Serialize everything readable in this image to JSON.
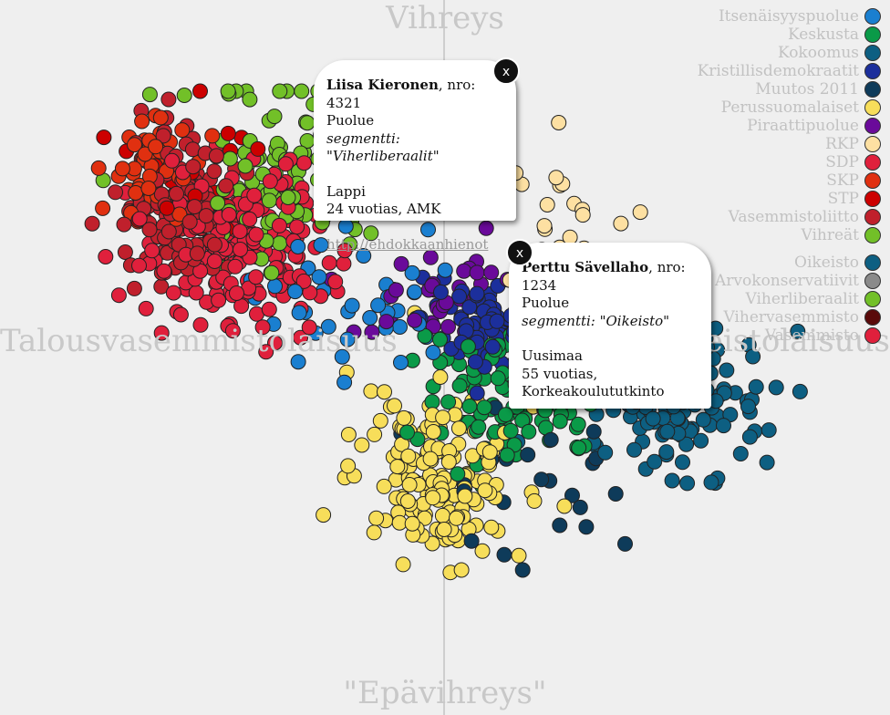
{
  "chart_data": {
    "type": "scatter",
    "xlabel_left": "Talousvasemmistolaisuus",
    "xlabel_right": "Talousoikeistolaisuus",
    "ylabel_top": "Vihreys",
    "ylabel_bottom": "\"Epävihreys\"",
    "series": [
      {
        "name": "Itsenäisyyspuolue",
        "color": "#1a7fd0",
        "count": 40,
        "cx": 400,
        "cy": 330,
        "sx": 110,
        "sy": 80
      },
      {
        "name": "Keskusta",
        "color": "#0a9a48",
        "count": 120,
        "cx": 560,
        "cy": 430,
        "sx": 90,
        "sy": 75
      },
      {
        "name": "Kokoomus",
        "color": "#0d5f82",
        "count": 150,
        "cx": 740,
        "cy": 440,
        "sx": 90,
        "sy": 70
      },
      {
        "name": "Kristillisdemokraatit",
        "color": "#1c2f9c",
        "count": 90,
        "cx": 540,
        "cy": 350,
        "sx": 70,
        "sy": 45
      },
      {
        "name": "Muutos 2011",
        "color": "#0e3b5a",
        "count": 25,
        "cx": 600,
        "cy": 520,
        "sx": 110,
        "sy": 90
      },
      {
        "name": "Perussuomalaiset",
        "color": "#f7de5a",
        "count": 170,
        "cx": 480,
        "cy": 520,
        "sx": 80,
        "sy": 80
      },
      {
        "name": "Piraattipuolue",
        "color": "#6a0a9a",
        "count": 40,
        "cx": 490,
        "cy": 320,
        "sx": 110,
        "sy": 70
      },
      {
        "name": "RKP",
        "color": "#fde0a2",
        "count": 25,
        "cx": 620,
        "cy": 260,
        "sx": 70,
        "sy": 80
      },
      {
        "name": "SDP",
        "color": "#e0203c",
        "count": 200,
        "cx": 260,
        "cy": 270,
        "sx": 90,
        "sy": 90
      },
      {
        "name": "SKP",
        "color": "#e03010",
        "count": 50,
        "cx": 170,
        "cy": 180,
        "sx": 50,
        "sy": 60
      },
      {
        "name": "STP",
        "color": "#cc0000",
        "count": 20,
        "cx": 200,
        "cy": 200,
        "sx": 70,
        "sy": 70
      },
      {
        "name": "Vasemmistoliitto",
        "color": "#c0202c",
        "count": 130,
        "cx": 200,
        "cy": 230,
        "sx": 60,
        "sy": 70
      },
      {
        "name": "Vihreät",
        "color": "#72c028",
        "count": 110,
        "cx": 320,
        "cy": 190,
        "sx": 100,
        "sy": 90
      }
    ],
    "legend_position": "top-right",
    "grid": false
  },
  "legend": {
    "parties": [
      {
        "label": "Itsenäisyyspuolue",
        "color": "#1a7fd0"
      },
      {
        "label": "Keskusta",
        "color": "#0a9a48"
      },
      {
        "label": "Kokoomus",
        "color": "#0d5f82"
      },
      {
        "label": "Kristillisdemokraatit",
        "color": "#1c2f9c"
      },
      {
        "label": "Muutos 2011",
        "color": "#0e3b5a"
      },
      {
        "label": "Perussuomalaiset",
        "color": "#f7de5a"
      },
      {
        "label": "Piraattipuolue",
        "color": "#6a0a9a"
      },
      {
        "label": "RKP",
        "color": "#fde0a2"
      },
      {
        "label": "SDP",
        "color": "#e0203c"
      },
      {
        "label": "SKP",
        "color": "#e03010"
      },
      {
        "label": "STP",
        "color": "#cc0000"
      },
      {
        "label": "Vasemmistoliitto",
        "color": "#c0202c"
      },
      {
        "label": "Vihreät",
        "color": "#72c028"
      }
    ],
    "segments": [
      {
        "label": "Oikeisto",
        "color": "#0d5f82"
      },
      {
        "label": "Arvokonservatiivit",
        "color": "#8a8a8a"
      },
      {
        "label": "Viherliberaalit",
        "color": "#72c028"
      },
      {
        "label": "Vihervasemmisto",
        "color": "#5a0a0a"
      },
      {
        "label": "Vasemmisto",
        "color": "#e0203c"
      }
    ]
  },
  "popup1": {
    "name": "Liisa Kieronen",
    "nro": ", nro: 4321",
    "puolue": "Puolue",
    "segment": "segmentti: \"Viherliberaalit\"",
    "region": "Lappi",
    "details": "24 vuotias, AMK",
    "link": "http://ehdokkaanhienot",
    "close": "x"
  },
  "popup2": {
    "name": "Perttu Sävellaho",
    "nro": ", nro: 1234",
    "puolue": "Puolue",
    "segment": "segmentti: \"Oikeisto\"",
    "region": "Uusimaa",
    "details1": "55 vuotias,",
    "details2": "Korkeakoulututkinto",
    "close": "x"
  }
}
